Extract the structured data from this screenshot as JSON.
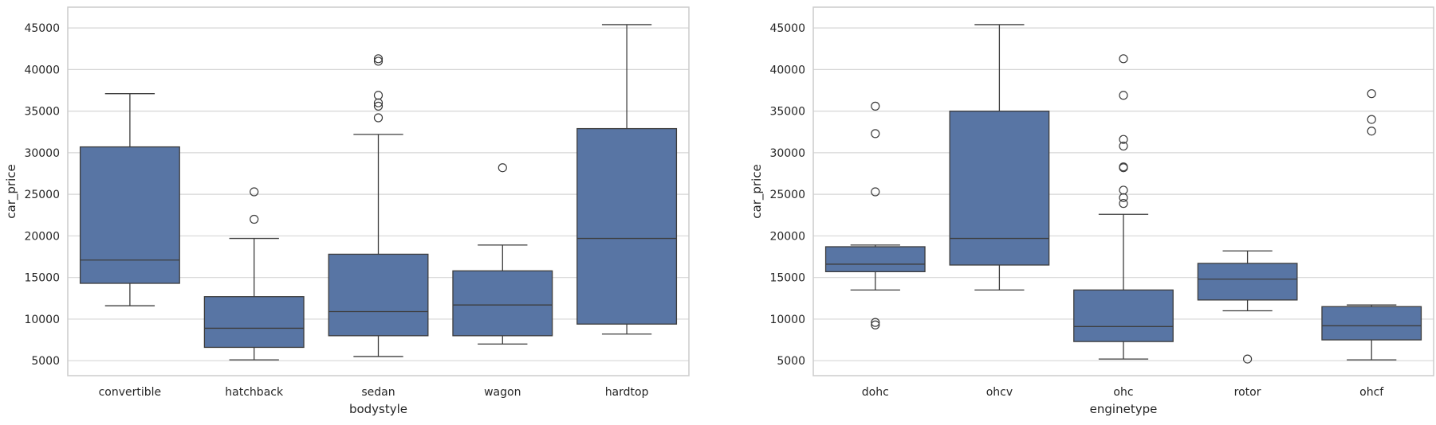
{
  "chart_data": [
    {
      "type": "box",
      "xlabel": "bodystyle",
      "ylabel": "car_price",
      "ylim": [
        3200,
        47500
      ],
      "yticks": [
        5000,
        10000,
        15000,
        20000,
        25000,
        30000,
        35000,
        40000,
        45000
      ],
      "tick_labels": [
        "5000",
        "10000",
        "15000",
        "20000",
        "25000",
        "30000",
        "35000",
        "40000",
        "45000"
      ],
      "grid": true,
      "box_color": "#5875a4",
      "categories": [
        "convertible",
        "hatchback",
        "sedan",
        "wagon",
        "hardtop"
      ],
      "boxes": [
        {
          "whisker_low": 11600,
          "q1": 14300,
          "median": 17100,
          "q3": 30700,
          "whisker_high": 37100,
          "outliers": []
        },
        {
          "whisker_low": 5100,
          "q1": 6600,
          "median": 8900,
          "q3": 12700,
          "whisker_high": 19700,
          "outliers": [
            22000,
            25300
          ]
        },
        {
          "whisker_low": 5500,
          "q1": 8000,
          "median": 10900,
          "q3": 17800,
          "whisker_high": 32200,
          "outliers": [
            34200,
            35600,
            36000,
            36900,
            41000,
            41300
          ]
        },
        {
          "whisker_low": 7000,
          "q1": 8000,
          "median": 11700,
          "q3": 15800,
          "whisker_high": 18900,
          "outliers": [
            28200
          ]
        },
        {
          "whisker_low": 8200,
          "q1": 9400,
          "median": 19700,
          "q3": 32900,
          "whisker_high": 45400,
          "outliers": []
        }
      ]
    },
    {
      "type": "box",
      "xlabel": "enginetype",
      "ylabel": "car_price",
      "ylim": [
        3200,
        47500
      ],
      "yticks": [
        5000,
        10000,
        15000,
        20000,
        25000,
        30000,
        35000,
        40000,
        45000
      ],
      "tick_labels": [
        "5000",
        "10000",
        "15000",
        "20000",
        "25000",
        "30000",
        "35000",
        "40000",
        "45000"
      ],
      "grid": true,
      "box_color": "#5875a4",
      "categories": [
        "dohc",
        "ohcv",
        "ohc",
        "rotor",
        "ohcf"
      ],
      "boxes": [
        {
          "whisker_low": 13500,
          "q1": 15700,
          "median": 16600,
          "q3": 18700,
          "whisker_high": 18900,
          "outliers": [
            9300,
            9600,
            25300,
            32300,
            35600
          ]
        },
        {
          "whisker_low": 13500,
          "q1": 16500,
          "median": 19700,
          "q3": 35000,
          "whisker_high": 45400,
          "outliers": []
        },
        {
          "whisker_low": 5200,
          "q1": 7300,
          "median": 9100,
          "q3": 13500,
          "whisker_high": 22600,
          "outliers": [
            23900,
            24600,
            25500,
            28200,
            28300,
            30800,
            31600,
            36900,
            41300
          ]
        },
        {
          "whisker_low": 11000,
          "q1": 12300,
          "median": 14800,
          "q3": 16700,
          "whisker_high": 18200,
          "outliers": [
            5200
          ]
        },
        {
          "whisker_low": 5100,
          "q1": 7500,
          "median": 9200,
          "q3": 11500,
          "whisker_high": 11700,
          "outliers": [
            32600,
            34000,
            37100
          ]
        }
      ]
    }
  ]
}
